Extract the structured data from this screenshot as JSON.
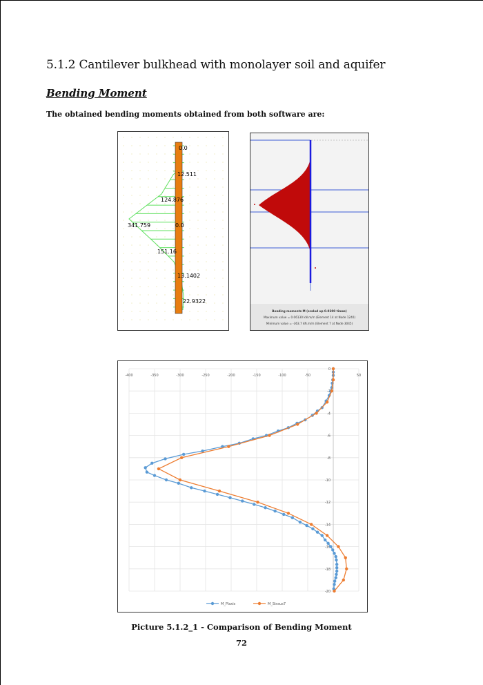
{
  "section_title": "5.1.2 Cantilever bulkhead with monolayer soil and aquifer",
  "subsection_title": "Bending Moment",
  "intro_text": "The obtained bending moments obtained from both software are:",
  "left_figure": {
    "labels": [
      "0.0",
      "12.511",
      "124.876",
      "341.759",
      "0.0",
      "151.16",
      "13.1402",
      "22.9322"
    ],
    "colors": {
      "pile": "#e87d10",
      "diagram": "#5fe05f"
    }
  },
  "right_figure": {
    "legend_title": "Bending moments M (scaled up 0.0200 times)",
    "max_text": "Maximum value = 0.06130 kN.m/m (Element 14 at Node 1240)",
    "min_text": "Minimum value = -363.7 kN.m/m (Element 7 at Node 3045)",
    "colors": {
      "fill": "#c00a0a",
      "pile": "#1a1adf",
      "layer_lines": "#3b5bd6"
    }
  },
  "chart_data": {
    "type": "line",
    "x_axis": {
      "range": [
        -400,
        50
      ],
      "ticks": [
        -400,
        -350,
        -300,
        -250,
        -200,
        -150,
        -100,
        -50,
        0,
        50
      ],
      "position": "top"
    },
    "y_axis": {
      "range": [
        -20,
        0
      ],
      "ticks": [
        0,
        -2,
        -4,
        -6,
        -8,
        -10,
        -12,
        -14,
        -16,
        -18,
        -20
      ]
    },
    "grid": true,
    "legend_position": "bottom",
    "series": [
      {
        "name": "M_Plaxis",
        "color": "#5b9bd5",
        "points": [
          [
            0,
            0
          ],
          [
            0,
            -0.3
          ],
          [
            0,
            -0.6
          ],
          [
            -1,
            -1.0
          ],
          [
            -2,
            -1.3
          ],
          [
            -3,
            -1.7
          ],
          [
            -5,
            -2.0
          ],
          [
            -8,
            -2.4
          ],
          [
            -14,
            -2.9
          ],
          [
            -22,
            -3.5
          ],
          [
            -31,
            -3.8
          ],
          [
            -41,
            -4.2
          ],
          [
            -55,
            -4.6
          ],
          [
            -71,
            -4.9
          ],
          [
            -88,
            -5.3
          ],
          [
            -108,
            -5.6
          ],
          [
            -131,
            -6.0
          ],
          [
            -157,
            -6.3
          ],
          [
            -184,
            -6.7
          ],
          [
            -217,
            -7.0
          ],
          [
            -256,
            -7.4
          ],
          [
            -293,
            -7.7
          ],
          [
            -329,
            -8.1
          ],
          [
            -355,
            -8.5
          ],
          [
            -368,
            -8.9
          ],
          [
            -365,
            -9.3
          ],
          [
            -350,
            -9.6
          ],
          [
            -327,
            -10.0
          ],
          [
            -303,
            -10.3
          ],
          [
            -278,
            -10.7
          ],
          [
            -252,
            -11.0
          ],
          [
            -227,
            -11.3
          ],
          [
            -202,
            -11.6
          ],
          [
            -178,
            -11.9
          ],
          [
            -155,
            -12.2
          ],
          [
            -133,
            -12.5
          ],
          [
            -114,
            -12.8
          ],
          [
            -97,
            -13.1
          ],
          [
            -80,
            -13.4
          ],
          [
            -65,
            -13.8
          ],
          [
            -52,
            -14.1
          ],
          [
            -40,
            -14.4
          ],
          [
            -31,
            -14.7
          ],
          [
            -22,
            -15.0
          ],
          [
            -16,
            -15.4
          ],
          [
            -10,
            -15.7
          ],
          [
            -5,
            -16.0
          ],
          [
            -1,
            -16.3
          ],
          [
            2,
            -16.6
          ],
          [
            5,
            -16.9
          ],
          [
            6,
            -17.2
          ],
          [
            7,
            -17.6
          ],
          [
            7,
            -17.9
          ],
          [
            7,
            -18.2
          ],
          [
            6,
            -18.5
          ],
          [
            5,
            -18.8
          ],
          [
            3,
            -19.1
          ],
          [
            2,
            -19.4
          ],
          [
            1,
            -19.8
          ]
        ]
      },
      {
        "name": "M_Straus7",
        "color": "#ed7d31",
        "points": [
          [
            0,
            0
          ],
          [
            0,
            -1
          ],
          [
            -3,
            -2
          ],
          [
            -12,
            -3
          ],
          [
            -33,
            -4
          ],
          [
            -70,
            -5
          ],
          [
            -125,
            -6
          ],
          [
            -205,
            -7
          ],
          [
            -297,
            -8
          ],
          [
            -342,
            -9
          ],
          [
            -300,
            -10
          ],
          [
            -223,
            -11
          ],
          [
            -148,
            -12
          ],
          [
            -88,
            -13
          ],
          [
            -43,
            -14
          ],
          [
            -12,
            -15
          ],
          [
            10,
            -16
          ],
          [
            24,
            -17
          ],
          [
            26,
            -18
          ],
          [
            20,
            -19
          ],
          [
            2,
            -20
          ]
        ]
      }
    ]
  },
  "caption": "Picture 5.1.2_1 - Comparison of Bending Moment",
  "page_number": "72"
}
